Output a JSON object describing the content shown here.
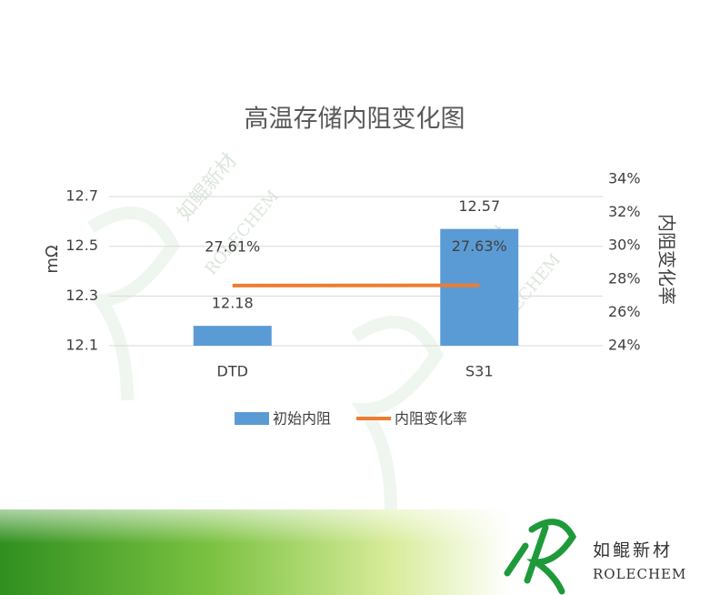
{
  "chart_data": {
    "type": "bar_line",
    "title": "高温存储内阻变化图",
    "categories": [
      "DTD",
      "S31"
    ],
    "series": [
      {
        "name": "初始内阻",
        "color": "#5b9bd5",
        "type": "bar",
        "values": [
          12.18,
          12.57
        ]
      },
      {
        "name": "内阻变化率",
        "color": "#ed7d31",
        "type": "line",
        "axis": "y2",
        "values": [
          27.61,
          27.63
        ],
        "value_labels": [
          "27.61%",
          "27.63%"
        ]
      }
    ],
    "ylabel": "mΩ",
    "y2label": "内阻变化率",
    "ylim": [
      12.1,
      12.77
    ],
    "yticks": [
      12.1,
      12.3,
      12.5,
      12.7
    ],
    "y2lim": [
      24,
      34
    ],
    "y2ticks": [
      {
        "value": 24,
        "label": "24%"
      },
      {
        "value": 26,
        "label": "26%"
      },
      {
        "value": 28,
        "label": "28%"
      },
      {
        "value": 30,
        "label": "30%"
      },
      {
        "value": 32,
        "label": "32%"
      },
      {
        "value": 34,
        "label": "34%"
      }
    ],
    "grid": true,
    "legend": "bottom"
  },
  "logo": {
    "name": "如鲲新材",
    "brand": "ROLECHEM"
  }
}
